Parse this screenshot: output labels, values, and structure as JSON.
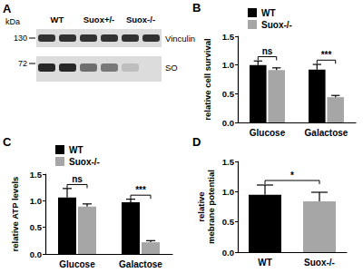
{
  "blot": {
    "panel": "A",
    "unit_label": "kDa",
    "markers": [
      130,
      72
    ],
    "groups": [
      "WT",
      "Suox+/-",
      "Suox-/-"
    ],
    "bands": [
      "Vinculin",
      "SO"
    ]
  },
  "chart_data": [
    {
      "type": "bar",
      "title": "B",
      "categories": [
        "Glucose",
        "Galactose"
      ],
      "y_label": "relative cell survival",
      "series": [
        {
          "name": "WT",
          "color": "#000000",
          "values": [
            1.0,
            0.92
          ],
          "errors": [
            0.07,
            0.09
          ]
        },
        {
          "name": "Suox-/-",
          "color": "#a6a6a6",
          "values": [
            0.91,
            0.44
          ],
          "errors": [
            0.04,
            0.03
          ]
        }
      ],
      "ylim": [
        0,
        1.5
      ],
      "yticks": [
        {
          "value": 0,
          "label": "0.0"
        },
        {
          "value": 0.5,
          "label": "0.5"
        },
        {
          "value": 1,
          "label": "1.0"
        },
        {
          "value": 1.5,
          "label": "1.5"
        }
      ],
      "annotations": [
        {
          "text": "ns",
          "categories": [
            "Glucose"
          ]
        },
        {
          "text": "***",
          "categories": [
            "Galactose"
          ]
        }
      ],
      "legend": "top",
      "grid": false
    },
    {
      "type": "bar",
      "title": "C",
      "categories": [
        "Glucose",
        "Galactose"
      ],
      "y_label": "relative ATP levels",
      "series": [
        {
          "name": "WT",
          "color": "#000000",
          "values": [
            1.06,
            0.97
          ],
          "errors": [
            0.17,
            0.06
          ]
        },
        {
          "name": "Suox-/-",
          "color": "#a6a6a6",
          "values": [
            0.89,
            0.22
          ],
          "errors": [
            0.05,
            0.03
          ]
        }
      ],
      "ylim": [
        0,
        1.5
      ],
      "yticks": [
        {
          "value": 0,
          "label": "0.0"
        },
        {
          "value": 0.5,
          "label": "0.5"
        },
        {
          "value": 1,
          "label": "1.0"
        },
        {
          "value": 1.5,
          "label": "1.5"
        }
      ],
      "annotations": [
        {
          "text": "ns",
          "categories": [
            "Glucose"
          ]
        },
        {
          "text": "***",
          "categories": [
            "Galactose"
          ]
        }
      ],
      "legend": "top",
      "grid": false
    },
    {
      "type": "bar",
      "title": "D",
      "categories": [
        "WT",
        "Suox-/-"
      ],
      "y_label": "relative\nmebrane potential",
      "values": [
        0.95,
        0.84
      ],
      "errors": [
        0.16,
        0.15
      ],
      "colors": [
        "#000000",
        "#a6a6a6"
      ],
      "ylim": [
        0,
        1.5
      ],
      "yticks": [
        {
          "value": 0,
          "label": "0.0"
        },
        {
          "value": 0.5,
          "label": "0.5"
        },
        {
          "value": 1,
          "label": "1.0"
        },
        {
          "value": 1.5,
          "label": "1.5"
        }
      ],
      "annotations": [
        {
          "text": "*",
          "categories": [
            "WT",
            "Suox-/-"
          ]
        }
      ],
      "grid": false
    }
  ]
}
